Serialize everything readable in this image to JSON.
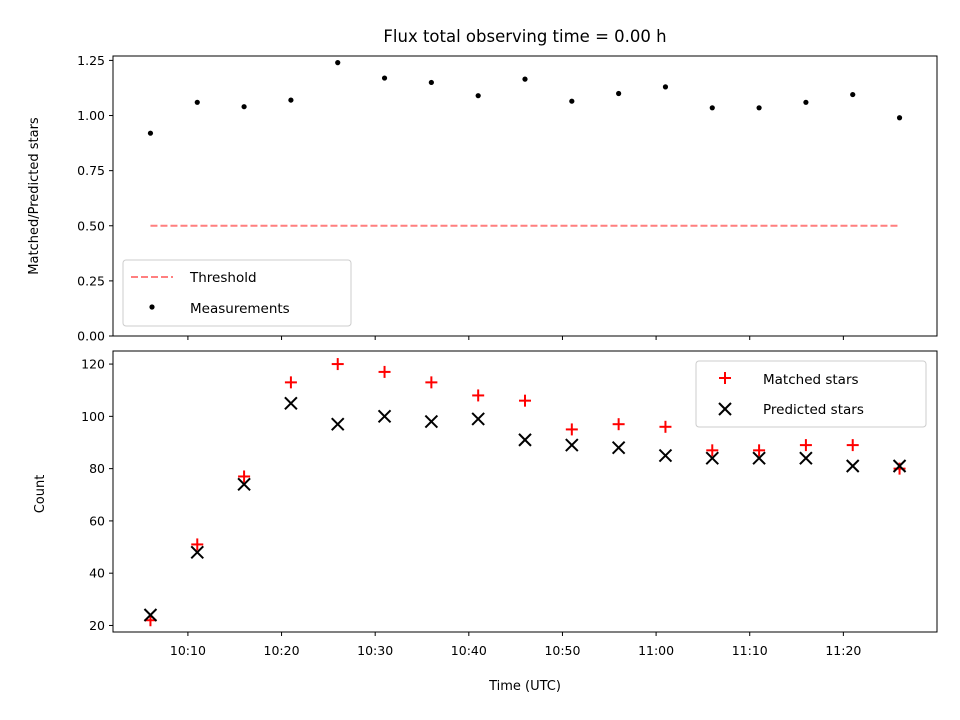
{
  "chart_data": [
    {
      "type": "scatter",
      "title": "Flux total observing time = 0.00 h",
      "xlabel": "",
      "ylabel": "Matched/Predicted stars",
      "ylim": [
        0,
        1.27
      ],
      "xlim": [
        "10:02",
        "11:30"
      ],
      "yticks": [
        "0.00",
        "0.25",
        "0.50",
        "0.75",
        "1.00",
        "1.25"
      ],
      "ytick_values": [
        0,
        0.25,
        0.5,
        0.75,
        1.0,
        1.25
      ],
      "x": [
        "10:06",
        "10:11",
        "10:16",
        "10:21",
        "10:26",
        "10:31",
        "10:36",
        "10:41",
        "10:46",
        "10:51",
        "10:56",
        "11:01",
        "11:06",
        "11:11",
        "11:16",
        "11:21",
        "11:26"
      ],
      "series": [
        {
          "name": "Measurements",
          "marker": "dot",
          "color": "#000000",
          "values": [
            0.92,
            1.06,
            1.04,
            1.07,
            1.24,
            1.17,
            1.15,
            1.09,
            1.165,
            1.065,
            1.1,
            1.13,
            1.035,
            1.035,
            1.06,
            1.095,
            0.99
          ]
        },
        {
          "name": "Threshold",
          "style": "dashed",
          "color": "#ff7f7f",
          "x": [
            "10:06",
            "11:26"
          ],
          "values": [
            0.5,
            0.5
          ]
        }
      ],
      "legend": "lower-left",
      "grid": false
    },
    {
      "type": "scatter",
      "title": "",
      "xlabel": "Time (UTC)",
      "ylabel": "Count",
      "ylim": [
        17.5,
        125
      ],
      "xlim": [
        "10:02",
        "11:30"
      ],
      "xticks": [
        "10:10",
        "10:20",
        "10:30",
        "10:40",
        "10:50",
        "11:00",
        "11:10",
        "11:20"
      ],
      "yticks": [
        "20",
        "40",
        "60",
        "80",
        "100",
        "120"
      ],
      "ytick_values": [
        20,
        40,
        60,
        80,
        100,
        120
      ],
      "x": [
        "10:06",
        "10:11",
        "10:16",
        "10:21",
        "10:26",
        "10:31",
        "10:36",
        "10:41",
        "10:46",
        "10:51",
        "10:56",
        "11:01",
        "11:06",
        "11:11",
        "11:16",
        "11:21",
        "11:26"
      ],
      "series": [
        {
          "name": "Matched stars",
          "marker": "plus",
          "color": "#ff0000",
          "values": [
            22,
            51,
            77,
            113,
            120,
            117,
            113,
            108,
            106,
            95,
            97,
            96,
            87,
            87,
            89,
            89,
            80
          ]
        },
        {
          "name": "Predicted stars",
          "marker": "x",
          "color": "#000000",
          "values": [
            24,
            48,
            74,
            105,
            97,
            100,
            98,
            99,
            91,
            89,
            88,
            85,
            84,
            84,
            84,
            81,
            81
          ]
        }
      ],
      "legend": "upper-right",
      "grid": false
    }
  ]
}
